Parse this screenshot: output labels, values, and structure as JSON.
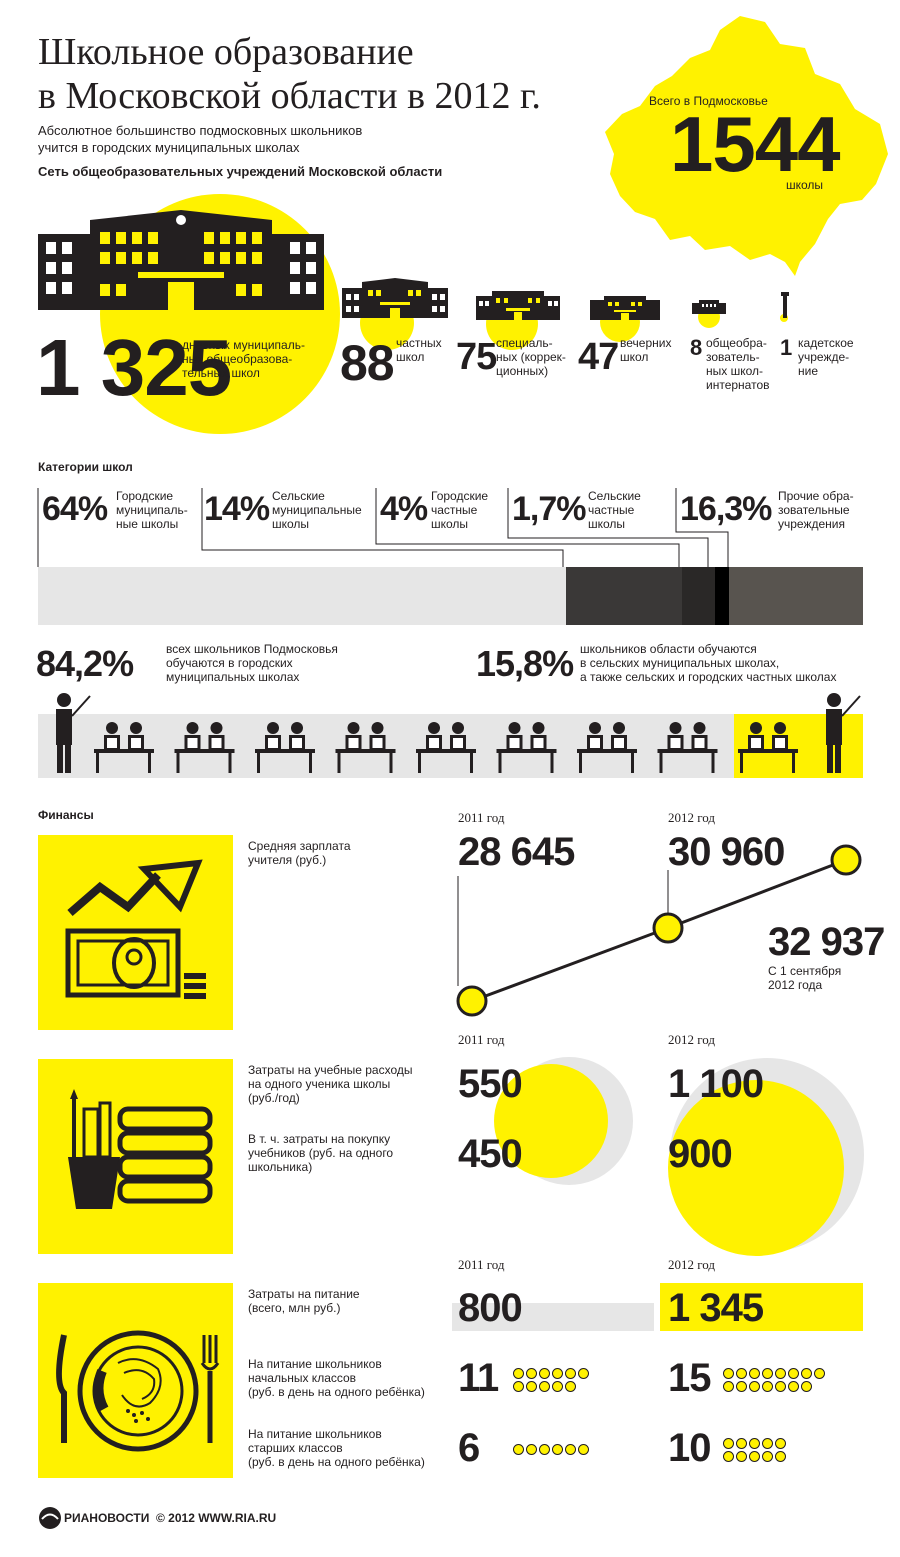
{
  "header": {
    "title_line1": "Школьное образование",
    "title_line2": "в Московской области в 2012 г.",
    "subtitle_line1": "Абсолютное большинство подмосковных школьников",
    "subtitle_line2": "учится в городских муниципальных школах",
    "network_title": "Сеть общеобразовательных учреждений Московской области"
  },
  "total": {
    "label": "Всего в Подмосковье",
    "value": "1544",
    "unit": "школы"
  },
  "school_types": [
    {
      "value": "1 325",
      "label": "дневных муниципаль-\nных общеобразова-\nтельных школ"
    },
    {
      "value": "88",
      "label": "частных\nшкол"
    },
    {
      "value": "75",
      "label": "специаль-\nных (коррек-\nционных)"
    },
    {
      "value": "47",
      "label": "вечерних\nшкол"
    },
    {
      "value": "8",
      "label": "общеобра-\nзователь-\nных школ-\nинтернатов"
    },
    {
      "value": "1",
      "label": "кадетское\nучрежде-\nние"
    }
  ],
  "categories": {
    "title": "Категории школ",
    "items": [
      {
        "pct": "64%",
        "label": "Городские\nмуниципаль-\nные школы",
        "share": 64,
        "color": "#e6e6e6"
      },
      {
        "pct": "14%",
        "label": "Сельские\nмуниципальные\nшколы",
        "share": 14,
        "color": "#3a3837"
      },
      {
        "pct": "4%",
        "label": "Городские\nчастные\nшколы",
        "share": 4,
        "color": "#2a2827"
      },
      {
        "pct": "1,7%",
        "label": "Сельские\nчастные\nшколы",
        "share": 1.7,
        "color": "#000000"
      },
      {
        "pct": "16,3%",
        "label": "Прочие обра-\nзовательные\nучреждения",
        "share": 16.3,
        "color": "#58544f"
      }
    ]
  },
  "students": {
    "urban_pct": "84,2%",
    "urban_text": "всех школьников Подмосковья\nобучаются в городских\nмуниципальных школах",
    "rural_pct": "15,8%",
    "rural_text": "школьников области обучаются\nв сельских муниципальных школах,\nа также сельских и городских частных школах"
  },
  "finance": {
    "title": "Финансы",
    "salary": {
      "label": "Средняя зарплата\nучителя (руб.)",
      "year1": "2011 год",
      "year2": "2012 год",
      "v2011": "28 645",
      "v2012": "30 960",
      "v2012sep": "32 937",
      "sep_note": "С 1 сентября\n2012 года"
    },
    "edu": {
      "label1": "Затраты на учебные расходы\nна одного ученика школы\n(руб./год)",
      "label2": "В т. ч. затраты на покупку\nучебников (руб. на одного\nшкольника)",
      "year1": "2011 год",
      "year2": "2012 год",
      "v1_2011": "550",
      "v2_2011": "450",
      "v1_2012": "1 100",
      "v2_2012": "900"
    },
    "food": {
      "label1": "Затраты на питание\n(всего, млн руб.)",
      "label2": "На питание школьников\nначальных классов\n(руб. в день на одного ребёнка)",
      "label3": "На питание школьников\nстарших классов\n(руб. в день на одного ребёнка)",
      "year1": "2011 год",
      "year2": "2012 год",
      "total_2011": "800",
      "total_2012": "1 345",
      "primary_2011": "11",
      "primary_2012": "15",
      "senior_2011": "6",
      "senior_2012": "10"
    }
  },
  "footer": {
    "brand": "РИАНОВОСТИ",
    "copyright": "© 2012 WWW.RIA.RU"
  },
  "colors": {
    "accent": "#fff200",
    "dark": "#231f20",
    "gray": "#e6e6e6"
  }
}
